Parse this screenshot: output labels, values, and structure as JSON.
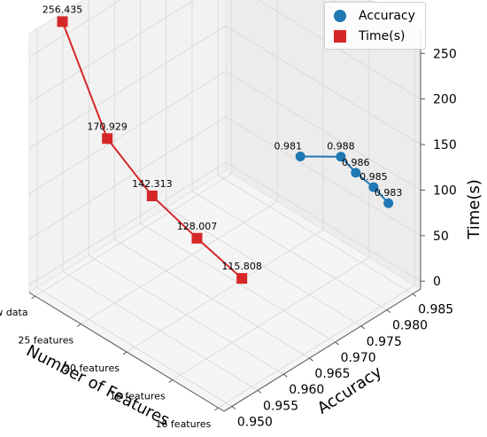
{
  "chart_data": {
    "type": "scatter3d",
    "x_axis": {
      "label": "Number of Features",
      "categories": [
        "Raw data",
        "25 features",
        "20 features",
        "18 features",
        "16 features"
      ]
    },
    "y_axis": {
      "label": "Accuracy",
      "ticks": [
        "0.950",
        "0.955",
        "0.960",
        "0.965",
        "0.970",
        "0.975",
        "0.980",
        "0.985"
      ]
    },
    "z_axis": {
      "label": "Time(s)",
      "ticks": [
        "0",
        "50",
        "100",
        "150",
        "200",
        "250"
      ]
    },
    "series": [
      {
        "name": "Accuracy",
        "color": "#1f77b4",
        "marker": "circle",
        "values": [
          0.981,
          0.988,
          0.986,
          0.985,
          0.983
        ],
        "labels": [
          "0.981",
          "0.988",
          "0.986",
          "0.985",
          "0.983"
        ]
      },
      {
        "name": "Time(s)",
        "color": "#d62728",
        "marker": "square",
        "values": [
          256.435,
          170.929,
          142.313,
          128.007,
          115.808
        ],
        "labels": [
          "256.435",
          "170.929",
          "142.313",
          "128.007",
          "115.808"
        ]
      }
    ],
    "grid": true,
    "legend_position": "top-right"
  }
}
